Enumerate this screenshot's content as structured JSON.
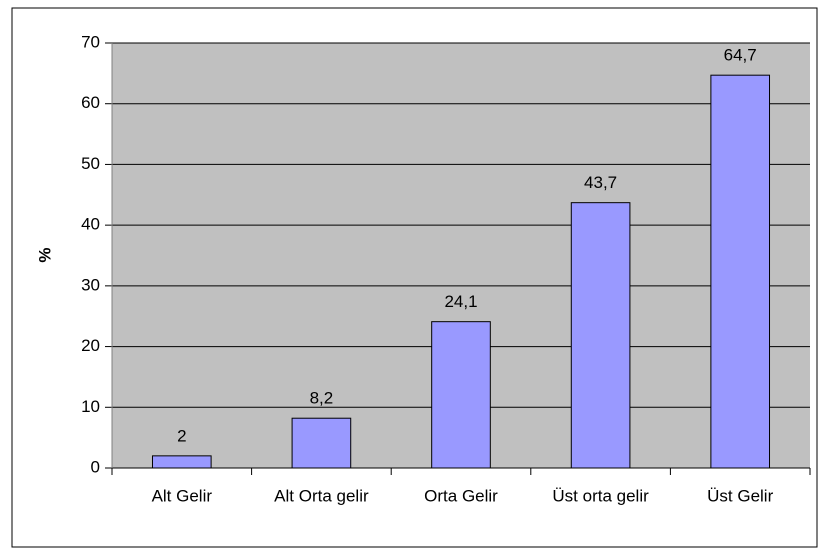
{
  "chart_data": {
    "type": "bar",
    "y_label": "%",
    "categories": [
      "Alt Gelir",
      "Alt Orta gelir",
      "Orta Gelir",
      "Üst orta gelir",
      "Üst Gelir"
    ],
    "values": [
      2,
      8.2,
      24.1,
      43.7,
      64.7
    ],
    "value_labels": [
      "2",
      "8,2",
      "24,1",
      "43,7",
      "64,7"
    ],
    "color": "#9999ff",
    "ylim": [
      0,
      70
    ],
    "yticks": [
      0,
      10,
      20,
      30,
      40,
      50,
      60,
      70
    ],
    "grid": true
  }
}
